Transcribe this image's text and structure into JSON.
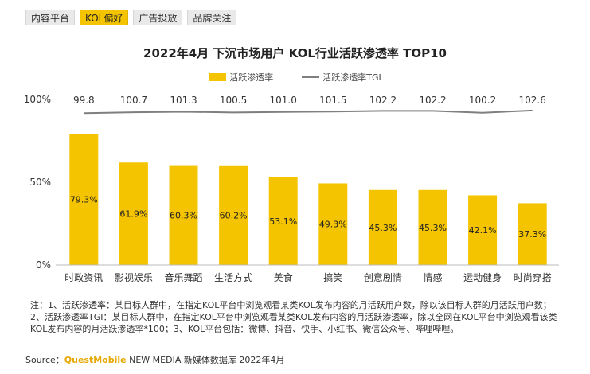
{
  "tabs": [
    {
      "label": "内容平台",
      "active": false
    },
    {
      "label": "KOL偏好",
      "active": true
    },
    {
      "label": "广告投放",
      "active": false
    },
    {
      "label": "品牌关注",
      "active": false
    }
  ],
  "chart_data": {
    "type": "bar",
    "title": "2022年4月 下沉市场用户 KOL行业活跃渗透率 TOP10",
    "categories": [
      "时政资讯",
      "影视娱乐",
      "音乐舞蹈",
      "生活方式",
      "美食",
      "搞笑",
      "创意剧情",
      "情感",
      "运动健身",
      "时尚穿搭"
    ],
    "series": [
      {
        "name": "活跃渗透率",
        "values": [
          79.3,
          61.9,
          60.3,
          60.2,
          53.1,
          49.3,
          45.3,
          45.3,
          42.1,
          37.3
        ],
        "labels": [
          "79.3%",
          "61.9%",
          "60.3%",
          "60.2%",
          "53.1%",
          "49.3%",
          "45.3%",
          "45.3%",
          "42.1%",
          "37.3%"
        ]
      },
      {
        "name": "活跃渗透率TGI",
        "values": [
          99.8,
          100.7,
          101.3,
          100.5,
          101.0,
          101.5,
          102.2,
          102.2,
          100.2,
          102.6
        ],
        "labels": [
          "99.8",
          "100.7",
          "101.3",
          "100.5",
          "101.0",
          "101.5",
          "102.2",
          "102.2",
          "100.2",
          "102.6"
        ]
      }
    ],
    "y_ticks": [
      "0%",
      "50%",
      "100%"
    ],
    "ylim": [
      0,
      100
    ],
    "legend_position": "top",
    "grid": false,
    "colors": {
      "bar": "#f5c400",
      "line": "#7f7f7f"
    }
  },
  "note": "注：1、活跃渗透率：某目标人群中，在指定KOL平台中浏览观看某类KOL发布内容的月活跃用户数，除以该目标人群的月活跃用户数；2、活跃渗透率TGI：某目标人群中，在指定KOL平台中浏览观看某类KOL发布内容的月活跃渗透率，除以全网在KOL平台中浏览观看该类KOL发布内容的月活跃渗透率*100；3、KOL平台包括：微博、抖音、快手、小红书、微信公众号、哔哩哔哩。",
  "source": {
    "prefix": "Source：",
    "brand": "QuestMobile",
    "rest": " NEW MEDIA 新媒体数据库 2022年4月"
  }
}
